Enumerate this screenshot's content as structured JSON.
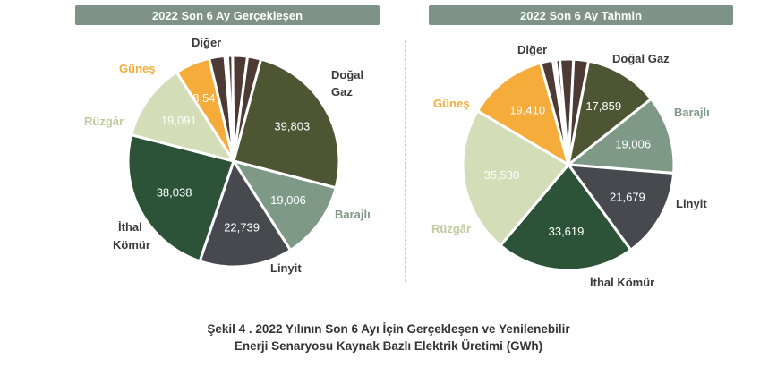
{
  "colors": {
    "dogal_gaz": "#4d5533",
    "barajli": "#7e9a87",
    "linyit": "#48494f",
    "ithal_komur": "#2c5337",
    "ruzgar": "#d3ddb7",
    "gunes": "#f5ac3a",
    "diger": "#4d3a34"
  },
  "caption": {
    "line1": "Şekil 4 . 2022 Yılının Son 6 Ayı İçin Gerçekleşen ve Yenilenebilir",
    "line2": "Enerji Senaryosu Kaynak Bazlı Elektrik Üretimi (GWh)"
  },
  "chart_data": [
    {
      "type": "pie",
      "title": "2022 Son 6 Ay Gerçekleşen",
      "start_angle_deg": 15,
      "slices": [
        {
          "label": "Doğal Gaz",
          "value": 39803,
          "value_label": "39,803",
          "color_key": "dogal_gaz"
        },
        {
          "label": "Barajlı",
          "value": 19006,
          "value_label": "19,006",
          "color_key": "barajli"
        },
        {
          "label": "Linyit",
          "value": 22739,
          "value_label": "22,739",
          "color_key": "linyit"
        },
        {
          "label": "İthal Kömür",
          "value": 38038,
          "value_label": "38,038",
          "color_key": "ithal_komur"
        },
        {
          "label": "Rüzgâr",
          "value": 19091,
          "value_label": "19,091",
          "color_key": "ruzgar"
        },
        {
          "label": "Güneş",
          "value": 8547,
          "value_label": "8,547",
          "color_key": "gunes"
        },
        {
          "label": "Diğer",
          "value": 3800,
          "value_label": "",
          "color_key": "diger"
        },
        {
          "label": "Diğer",
          "value": 700,
          "value_label": "",
          "color_key": "diger"
        },
        {
          "label": "Diğer",
          "value": 1200,
          "value_label": "",
          "color_key": "diger"
        },
        {
          "label": "Diğer",
          "value": 3600,
          "value_label": "",
          "color_key": "diger"
        },
        {
          "label": "Diğer",
          "value": 3300,
          "value_label": "",
          "color_key": "diger"
        }
      ]
    },
    {
      "type": "pie",
      "title": "2022 Son 6 Ay Tahmin",
      "start_angle_deg": 11,
      "slices": [
        {
          "label": "Doğal Gaz",
          "value": 17859,
          "value_label": "17,859",
          "color_key": "dogal_gaz"
        },
        {
          "label": "Barajlı",
          "value": 19006,
          "value_label": "19,006",
          "color_key": "barajli"
        },
        {
          "label": "Linyit",
          "value": 21679,
          "value_label": "21,679",
          "color_key": "linyit"
        },
        {
          "label": "İthal Kömür",
          "value": 33619,
          "value_label": "33,619",
          "color_key": "ithal_komur"
        },
        {
          "label": "Rüzgâr",
          "value": 35530,
          "value_label": "35,530",
          "color_key": "ruzgar"
        },
        {
          "label": "Güneş",
          "value": 19410,
          "value_label": "19,410",
          "color_key": "gunes"
        },
        {
          "label": "Diğer",
          "value": 3000,
          "value_label": "",
          "color_key": "diger"
        },
        {
          "label": "Diğer",
          "value": 700,
          "value_label": "",
          "color_key": "diger"
        },
        {
          "label": "Diğer",
          "value": 1000,
          "value_label": "",
          "color_key": "diger"
        },
        {
          "label": "Diğer",
          "value": 3300,
          "value_label": "",
          "color_key": "diger"
        },
        {
          "label": "Diğer",
          "value": 3600,
          "value_label": "",
          "color_key": "diger"
        }
      ]
    }
  ],
  "outside_labels": {
    "left": {
      "dogal_gaz_1": "Doğal",
      "dogal_gaz_2": "Gaz",
      "barajli": "Barajlı",
      "linyit": "Linyit",
      "ithal_komur_1": "İthal",
      "ithal_komur_2": "Kömür",
      "ruzgar": "Rüzgâr",
      "gunes": "Güneş",
      "diger": "Diğer"
    },
    "right": {
      "dogal_gaz": "Doğal Gaz",
      "barajli": "Barajlı",
      "linyit": "Linyit",
      "ithal_komur": "İthal Kömür",
      "ruzgar": "Rüzgâr",
      "gunes": "Güneş",
      "diger": "Diğer"
    }
  }
}
